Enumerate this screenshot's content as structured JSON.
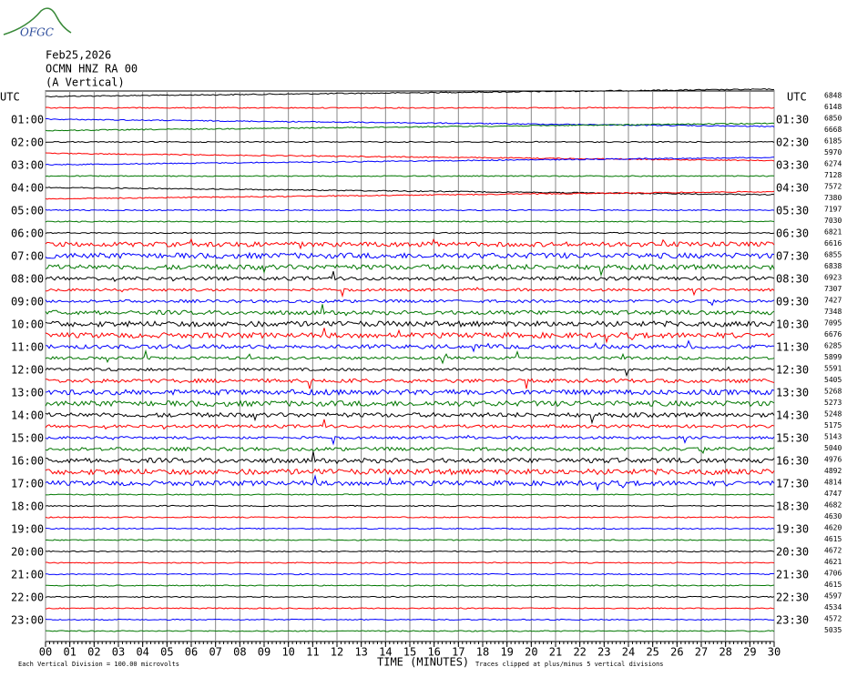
{
  "header": {
    "logo": "OFGC",
    "date": "Feb25,2026",
    "station": "OCMN HNZ RA 00",
    "component": "(A Vertical)"
  },
  "left_labels": [
    "UTC",
    "01:00",
    "02:00",
    "03:00",
    "04:00",
    "05:00",
    "06:00",
    "07:00",
    "08:00",
    "09:00",
    "10:00",
    "11:00",
    "12:00",
    "13:00",
    "14:00",
    "15:00",
    "16:00",
    "17:00",
    "18:00",
    "19:00",
    "20:00",
    "21:00",
    "22:00",
    "23:00"
  ],
  "right_labels": [
    "UTC",
    "01:30",
    "02:30",
    "03:30",
    "04:30",
    "05:30",
    "06:30",
    "07:30",
    "08:30",
    "09:30",
    "10:30",
    "11:30",
    "12:30",
    "13:30",
    "14:30",
    "15:30",
    "16:30",
    "17:30",
    "18:30",
    "19:30",
    "20:30",
    "21:30",
    "22:30",
    "23:30"
  ],
  "rms_values": [
    6848,
    6148,
    6850,
    6668,
    6185,
    5970,
    6274,
    7128,
    7572,
    7380,
    7197,
    7030,
    6821,
    6616,
    6855,
    6838,
    6923,
    7307,
    7427,
    7348,
    7095,
    6676,
    6285,
    5899,
    5591,
    5405,
    5268,
    5273,
    5248,
    5175,
    5143,
    5040,
    4976,
    4892,
    4814,
    4747,
    4682,
    4630,
    4620,
    4615,
    4672,
    4621,
    4706,
    4615,
    4597,
    4534,
    4572,
    5035
  ],
  "trace_colors": [
    "#000000",
    "#ff0000",
    "#0000ff",
    "#007700"
  ],
  "x_axis": {
    "title": "TIME (MINUTES)",
    "xlim": [
      0,
      30
    ],
    "ticks": [
      {
        "value": 0,
        "label": "00"
      },
      {
        "value": 1,
        "label": "01"
      },
      {
        "value": 2,
        "label": "02"
      },
      {
        "value": 3,
        "label": "03"
      },
      {
        "value": 4,
        "label": "04"
      },
      {
        "value": 5,
        "label": "05"
      },
      {
        "value": 6,
        "label": "06"
      },
      {
        "value": 7,
        "label": "07"
      },
      {
        "value": 8,
        "label": "08"
      },
      {
        "value": 9,
        "label": "09"
      },
      10,
      11,
      12,
      13,
      14,
      15,
      16,
      17,
      18,
      19,
      20,
      21,
      22,
      23,
      24,
      25,
      26,
      27,
      28,
      29,
      30
    ]
  },
  "footer": {
    "division": "Each Vertical Division =  100.00 microvolts",
    "clip": "Traces clipped at plus/minus 5 vertical divisions"
  }
}
